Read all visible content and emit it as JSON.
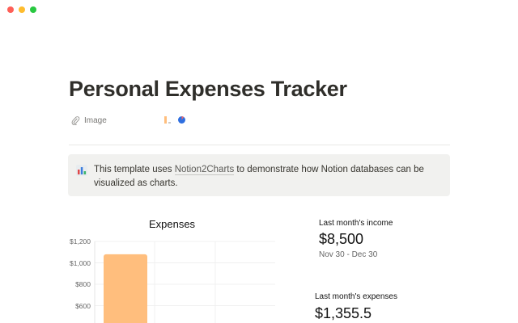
{
  "window": {
    "controls": [
      {
        "name": "close",
        "color": "#fe5f57"
      },
      {
        "name": "minimize",
        "color": "#febc2e"
      },
      {
        "name": "maximize",
        "color": "#28c840"
      }
    ]
  },
  "page": {
    "title": "Personal Expenses Tracker"
  },
  "properties": {
    "label": "Image",
    "icon": "paperclip-icon"
  },
  "callout": {
    "icon": "bar-chart-icon",
    "text_before": "This template uses ",
    "link": "Notion2Charts",
    "text_after": " to demonstrate how Notion databases can be visualized as charts."
  },
  "chart_data": {
    "type": "bar",
    "title": "Expenses",
    "yticks": [
      "$1,200",
      "$1,000",
      "$800",
      "$600"
    ],
    "ylim": [
      600,
      1200
    ],
    "values": [
      1080
    ],
    "bar_color": "#ffbe7d",
    "grid": true
  },
  "stats": [
    {
      "label": "Last month's income",
      "value": "$8,500",
      "sub": "Nov 30 - Dec 30"
    },
    {
      "label": "Last month's expenses",
      "value": "$1,355.5"
    }
  ]
}
